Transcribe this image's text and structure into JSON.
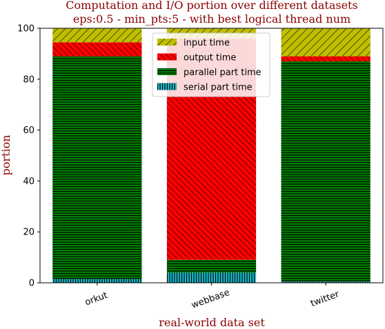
{
  "chart_data": {
    "type": "bar",
    "stacked": true,
    "title": "Computation and I/O portion over different datasets",
    "subtitle": "eps:0.5 - min_pts:5 - with best logical thread num",
    "xlabel": "real-world data set",
    "ylabel": "portion",
    "ylim": [
      0,
      100
    ],
    "yticks": [
      "0",
      "20",
      "40",
      "60",
      "80",
      "100"
    ],
    "categories": [
      "orkut",
      "webbase",
      "twitter"
    ],
    "series": [
      {
        "name": "serial part time",
        "values": [
          1.5,
          4.0,
          0.5
        ],
        "color": "#17becf",
        "hatch": "vertical"
      },
      {
        "name": "parallel part time",
        "values": [
          87.5,
          5.0,
          86.5
        ],
        "color": "#008000",
        "hatch": "horizontal"
      },
      {
        "name": "output time",
        "values": [
          5.5,
          87.0,
          2.0
        ],
        "color": "#ff0000",
        "hatch": "diagonal-right"
      },
      {
        "name": "input time",
        "values": [
          5.5,
          4.0,
          11.0
        ],
        "color": "#bfbf00",
        "hatch": "diagonal-left"
      }
    ],
    "legend": {
      "placement": "top-center",
      "entries": [
        "input time",
        "output time",
        "parallel part time",
        "serial part time"
      ]
    },
    "grid": false
  }
}
